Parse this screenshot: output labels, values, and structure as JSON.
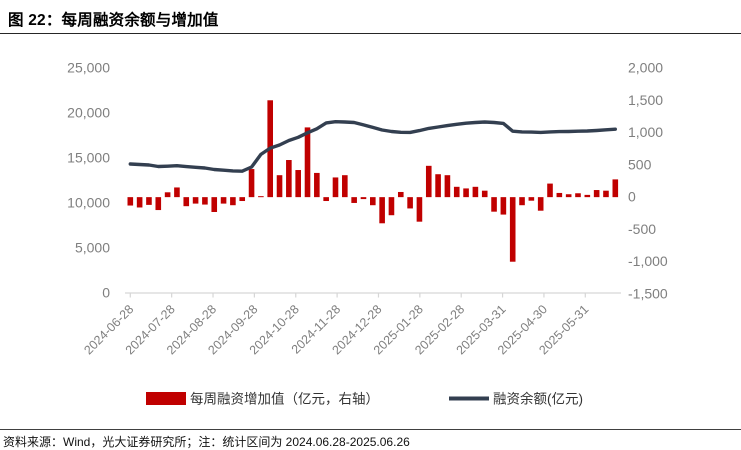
{
  "page": {
    "title": "图 22：每周融资余额与增加值",
    "footer": "资料来源：Wind，光大证券研究所；注：统计区间为 2024.06.28-2025.06.26"
  },
  "colors": {
    "bar": "#C00000",
    "line": "#333F50",
    "axis_text": "#7F7F7F",
    "axis_line": "#D6D6D6",
    "legend_text": "#333333"
  },
  "legend": {
    "bar_label": "每周融资增加值（亿元，右轴）",
    "line_label": "融资余额(亿元)"
  },
  "chart_data": {
    "type": "bar",
    "subtype": "combo-bar-line-dual-axis",
    "title": "每周融资余额与增加值",
    "xlabel": "",
    "ylabel_left": "",
    "ylabel_right": "",
    "x_tick_labels": [
      "2024-06-28",
      "2024-07-28",
      "2024-08-28",
      "2024-09-28",
      "2024-10-28",
      "2024-11-28",
      "2024-12-28",
      "2025-01-28",
      "2025-02-28",
      "2025-03-31",
      "2025-04-30",
      "2025-05-31"
    ],
    "left_axis": {
      "min": 0,
      "max": 25000,
      "tick_values": [
        25000,
        20000,
        15000,
        10000,
        5000,
        0
      ],
      "tick_labels": [
        "25,000",
        "20,000",
        "15,000",
        "10,000",
        "5,000",
        "0"
      ]
    },
    "right_axis": {
      "min": -1500,
      "max": 2000,
      "tick_values": [
        2000,
        1500,
        1000,
        500,
        0,
        -500,
        -1000,
        -1500
      ],
      "tick_labels": [
        "2,000",
        "1,500",
        "1,000",
        "500",
        "0",
        "-500",
        "-1,000",
        "-1,500"
      ]
    },
    "grid": false,
    "legend_position": "bottom",
    "series": [
      {
        "name": "每周融资增加值（亿元，右轴）",
        "type": "bar",
        "axis": "right",
        "values": [
          -130,
          -160,
          -120,
          -200,
          75,
          150,
          -140,
          -100,
          -115,
          -230,
          -100,
          -125,
          -60,
          435,
          15,
          1500,
          340,
          575,
          420,
          1080,
          375,
          -60,
          305,
          340,
          -90,
          -30,
          -125,
          -405,
          -280,
          80,
          -175,
          -380,
          485,
          355,
          340,
          160,
          135,
          160,
          100,
          -225,
          -270,
          -1000,
          -125,
          -55,
          -210,
          210,
          65,
          45,
          60,
          35,
          110,
          100,
          275
        ]
      },
      {
        "name": "融资余额(亿元)",
        "type": "line",
        "axis": "left",
        "values": [
          14330,
          14280,
          14220,
          14060,
          14090,
          14150,
          14050,
          13970,
          13890,
          13720,
          13650,
          13570,
          13530,
          14000,
          15400,
          16100,
          16450,
          16950,
          17300,
          17800,
          18250,
          18900,
          19030,
          19000,
          18950,
          18680,
          18400,
          18110,
          17950,
          17860,
          17840,
          18050,
          18290,
          18450,
          18600,
          18750,
          18870,
          18950,
          19000,
          18950,
          18850,
          17980,
          17900,
          17880,
          17850,
          17900,
          17930,
          17950,
          17980,
          18000,
          18060,
          18130,
          18200
        ]
      }
    ]
  }
}
